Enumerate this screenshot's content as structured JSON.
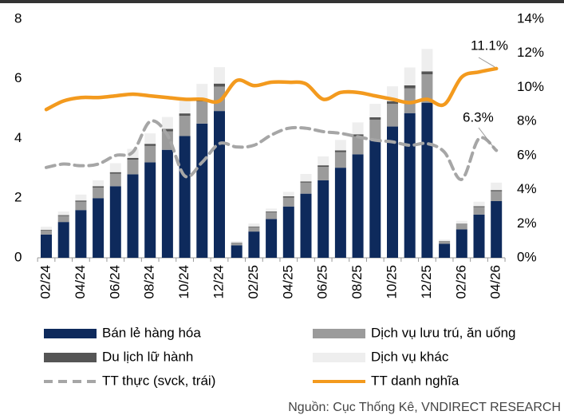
{
  "chart_data": {
    "type": "bar",
    "stacked": true,
    "categories": [
      "02/24",
      null,
      "04/24",
      null,
      "06/24",
      null,
      "08/24",
      null,
      "10/24",
      null,
      "12/24",
      null,
      "02/25",
      null,
      "04/25",
      null,
      "06/25",
      null,
      "08/25",
      null,
      "10/25",
      null,
      "12/25",
      null,
      "02/26",
      null,
      "04/26"
    ],
    "series": [
      {
        "name": "Bán lẻ hàng hóa",
        "color": "#0e2a5c",
        "values": [
          0.78,
          1.2,
          1.6,
          2.0,
          2.4,
          2.8,
          3.2,
          3.62,
          4.08,
          4.5,
          4.92,
          0.42,
          0.88,
          1.3,
          1.72,
          2.15,
          2.6,
          3.02,
          3.47,
          3.95,
          4.4,
          4.85,
          5.2,
          0.47,
          0.95,
          1.45,
          1.9
        ]
      },
      {
        "name": "Dịch vụ lưu trú, ăn uống",
        "color": "#9b9b9b",
        "values": [
          0.14,
          0.2,
          0.28,
          0.35,
          0.42,
          0.49,
          0.55,
          0.62,
          0.68,
          0.74,
          0.82,
          0.08,
          0.15,
          0.22,
          0.3,
          0.37,
          0.45,
          0.52,
          0.6,
          0.68,
          0.76,
          0.83,
          0.95,
          0.08,
          0.17,
          0.25,
          0.33
        ]
      },
      {
        "name": "Du lịch lữ hành",
        "color": "#555555",
        "values": [
          0.02,
          0.03,
          0.04,
          0.05,
          0.05,
          0.06,
          0.07,
          0.08,
          0.08,
          0.09,
          0.1,
          0.01,
          0.02,
          0.03,
          0.04,
          0.04,
          0.05,
          0.06,
          0.07,
          0.08,
          0.09,
          0.1,
          0.1,
          0.01,
          0.02,
          0.03,
          0.04
        ]
      },
      {
        "name": "Dịch vụ khác",
        "color": "#eeeeee",
        "values": [
          0.1,
          0.12,
          0.2,
          0.2,
          0.3,
          0.3,
          0.35,
          0.4,
          0.45,
          0.5,
          0.55,
          0.05,
          0.1,
          0.1,
          0.15,
          0.25,
          0.3,
          0.35,
          0.4,
          0.45,
          0.5,
          0.6,
          0.75,
          0.05,
          0.1,
          0.15,
          0.25
        ]
      },
      {
        "name": "TT thực (svck, trái)",
        "type": "line",
        "dashed": true,
        "axis": "y2",
        "color": "#a6a6a6",
        "values": [
          5.3,
          5.5,
          5.4,
          5.5,
          6.0,
          6.2,
          8.0,
          7.2,
          4.8,
          5.6,
          6.7,
          6.5,
          6.6,
          7.2,
          7.6,
          7.6,
          7.4,
          7.3,
          7.1,
          6.9,
          6.8,
          6.6,
          6.7,
          6.2,
          4.6,
          7.0,
          6.3
        ]
      },
      {
        "name": "TT danh nghĩa",
        "type": "line",
        "axis": "y2",
        "color": "#f39a1e",
        "values": [
          8.7,
          9.2,
          9.4,
          9.4,
          9.5,
          9.6,
          9.5,
          9.4,
          9.3,
          9.3,
          9.2,
          10.4,
          10.1,
          10.3,
          10.3,
          10.2,
          9.3,
          9.7,
          9.7,
          9.5,
          9.3,
          9.1,
          9.3,
          9.0,
          10.6,
          10.9,
          11.1
        ]
      }
    ],
    "ylim": [
      0,
      8
    ],
    "yticks": [
      0,
      2,
      4,
      6,
      8
    ],
    "y2lim": [
      0,
      14
    ],
    "y2ticks": [
      {
        "value": 0,
        "label": "0%"
      },
      {
        "value": 2,
        "label": "2%"
      },
      {
        "value": 4,
        "label": "4%"
      },
      {
        "value": 6,
        "label": "6%"
      },
      {
        "value": 8,
        "label": "8%"
      },
      {
        "value": 10,
        "label": "10%"
      },
      {
        "value": 12,
        "label": "12%"
      },
      {
        "value": 14,
        "label": "14%"
      }
    ],
    "annotations": [
      {
        "text": "11.1%",
        "series": 5
      },
      {
        "text": "6.3%",
        "series": 4
      }
    ],
    "source": "Nguồn: Cục Thống Kê, VNDIRECT RESEARCH"
  }
}
